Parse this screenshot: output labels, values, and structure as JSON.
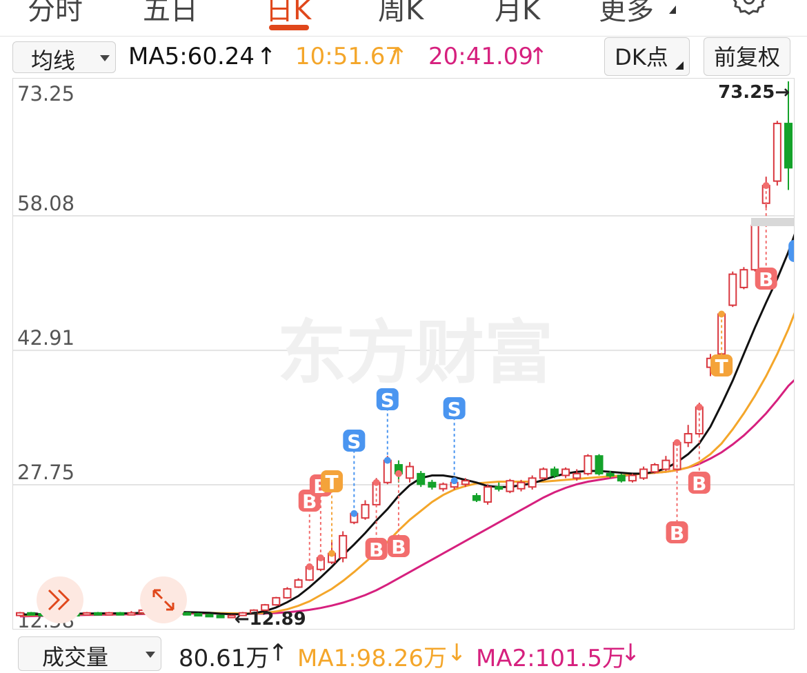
{
  "tabs": [
    {
      "label": "分时",
      "active": false
    },
    {
      "label": "五日",
      "active": false
    },
    {
      "label": "日K",
      "active": true
    },
    {
      "label": "周K",
      "active": false
    },
    {
      "label": "月K",
      "active": false
    },
    {
      "label": "更多",
      "active": false
    }
  ],
  "toolbar": {
    "indicator_select": "均线",
    "ma5": "MA5:60.24",
    "ma10": "10:51.67",
    "ma20": "20:41.09",
    "dk_button": "DK点",
    "adjust_button": "前复权"
  },
  "volume": {
    "select": "成交量",
    "value": "80.61万",
    "ma1": "MA1:98.26万",
    "ma2": "MA2:101.5万"
  },
  "colors": {
    "up": "#d9363e",
    "down": "#14a22a",
    "ma5": "#111111",
    "ma10": "#f4a62a",
    "ma20": "#d6207e",
    "accent": "#e0471b",
    "signal_b": "#f26d6d",
    "signal_s": "#4a95f0",
    "signal_t": "#f4a33a"
  },
  "chart_data": {
    "type": "candlestick",
    "y_axis_labels": [
      "73.25",
      "58.08",
      "42.91",
      "27.75",
      "12.58"
    ],
    "ylim": [
      12.58,
      73.25
    ],
    "high_annotation": "73.25→",
    "low_annotation": "←12.89",
    "watermark": "东方财富",
    "candles": [
      {
        "o": 13.0,
        "c": 13.3,
        "h": 13.4,
        "l": 12.9
      },
      {
        "o": 13.3,
        "c": 13.2,
        "h": 13.4,
        "l": 13.1
      },
      {
        "o": 13.2,
        "c": 13.1,
        "h": 13.3,
        "l": 13.0
      },
      {
        "o": 13.1,
        "c": 13.3,
        "h": 13.4,
        "l": 13.0
      },
      {
        "o": 13.3,
        "c": 13.2,
        "h": 13.4,
        "l": 13.1
      },
      {
        "o": 13.2,
        "c": 13.1,
        "h": 13.3,
        "l": 13.0
      },
      {
        "o": 13.1,
        "c": 13.3,
        "h": 13.4,
        "l": 13.0
      },
      {
        "o": 13.3,
        "c": 13.2,
        "h": 13.4,
        "l": 13.1
      },
      {
        "o": 13.2,
        "c": 13.3,
        "h": 13.4,
        "l": 13.1
      },
      {
        "o": 13.3,
        "c": 13.2,
        "h": 13.4,
        "l": 13.1
      },
      {
        "o": 13.2,
        "c": 13.3,
        "h": 13.5,
        "l": 13.1
      },
      {
        "o": 13.3,
        "c": 13.6,
        "h": 13.7,
        "l": 13.2
      },
      {
        "o": 13.6,
        "c": 13.5,
        "h": 13.7,
        "l": 13.4
      },
      {
        "o": 13.5,
        "c": 13.4,
        "h": 13.6,
        "l": 13.3
      },
      {
        "o": 13.4,
        "c": 13.3,
        "h": 13.5,
        "l": 13.2
      },
      {
        "o": 13.3,
        "c": 13.2,
        "h": 13.4,
        "l": 13.1
      },
      {
        "o": 13.2,
        "c": 13.1,
        "h": 13.3,
        "l": 13.0
      },
      {
        "o": 13.1,
        "c": 13.0,
        "h": 13.2,
        "l": 12.95
      },
      {
        "o": 13.0,
        "c": 12.95,
        "h": 13.1,
        "l": 12.89
      },
      {
        "o": 12.95,
        "c": 13.0,
        "h": 13.1,
        "l": 12.89
      },
      {
        "o": 13.0,
        "c": 13.3,
        "h": 13.4,
        "l": 12.95
      },
      {
        "o": 13.3,
        "c": 13.6,
        "h": 13.7,
        "l": 13.2
      },
      {
        "o": 13.6,
        "c": 14.2,
        "h": 14.3,
        "l": 13.5
      },
      {
        "o": 14.2,
        "c": 15.0,
        "h": 15.1,
        "l": 14.1
      },
      {
        "o": 15.0,
        "c": 16.0,
        "h": 16.2,
        "l": 14.9
      },
      {
        "o": 16.2,
        "c": 17.0,
        "h": 17.2,
        "l": 16.1
      },
      {
        "o": 17.0,
        "c": 18.5,
        "h": 18.6,
        "l": 16.9
      },
      {
        "o": 18.2,
        "c": 19.5,
        "h": 19.8,
        "l": 18.0
      },
      {
        "o": 19.0,
        "c": 20.0,
        "h": 21.5,
        "l": 18.8
      },
      {
        "o": 19.5,
        "c": 22.0,
        "h": 22.5,
        "l": 19.0
      },
      {
        "o": 23.5,
        "c": 24.5,
        "h": 24.8,
        "l": 23.3
      },
      {
        "o": 24.0,
        "c": 25.5,
        "h": 26.0,
        "l": 23.8
      },
      {
        "o": 25.5,
        "c": 28.0,
        "h": 28.5,
        "l": 25.3
      },
      {
        "o": 28.0,
        "c": 30.5,
        "h": 31.0,
        "l": 27.8
      },
      {
        "o": 30.0,
        "c": 29.0,
        "h": 30.5,
        "l": 28.0
      },
      {
        "o": 28.5,
        "c": 29.8,
        "h": 30.3,
        "l": 28.0
      },
      {
        "o": 29.0,
        "c": 27.8,
        "h": 29.3,
        "l": 27.5
      },
      {
        "o": 28.0,
        "c": 27.5,
        "h": 28.3,
        "l": 27.2
      },
      {
        "o": 27.3,
        "c": 27.8,
        "h": 28.0,
        "l": 27.0
      },
      {
        "o": 27.5,
        "c": 28.0,
        "h": 28.3,
        "l": 27.2
      },
      {
        "o": 27.8,
        "c": 28.2,
        "h": 28.5,
        "l": 27.5
      },
      {
        "o": 26.5,
        "c": 26.0,
        "h": 26.8,
        "l": 25.8
      },
      {
        "o": 25.8,
        "c": 27.5,
        "h": 27.8,
        "l": 25.5
      },
      {
        "o": 27.5,
        "c": 27.3,
        "h": 28.0,
        "l": 27.0
      },
      {
        "o": 27.0,
        "c": 28.2,
        "h": 28.4,
        "l": 26.8
      },
      {
        "o": 27.3,
        "c": 28.0,
        "h": 28.3,
        "l": 27.0
      },
      {
        "o": 27.5,
        "c": 28.5,
        "h": 28.8,
        "l": 27.2
      },
      {
        "o": 28.5,
        "c": 29.5,
        "h": 29.7,
        "l": 28.3
      },
      {
        "o": 29.5,
        "c": 28.8,
        "h": 29.8,
        "l": 28.5
      },
      {
        "o": 28.8,
        "c": 29.5,
        "h": 29.7,
        "l": 28.5
      },
      {
        "o": 28.5,
        "c": 29.0,
        "h": 29.5,
        "l": 28.2
      },
      {
        "o": 29.0,
        "c": 31.0,
        "h": 31.2,
        "l": 28.8
      },
      {
        "o": 31.0,
        "c": 29.0,
        "h": 31.2,
        "l": 28.8
      },
      {
        "o": 29.0,
        "c": 28.8,
        "h": 29.3,
        "l": 28.5
      },
      {
        "o": 28.8,
        "c": 28.2,
        "h": 29.0,
        "l": 28.0
      },
      {
        "o": 28.2,
        "c": 28.8,
        "h": 29.0,
        "l": 28.0
      },
      {
        "o": 28.5,
        "c": 29.5,
        "h": 29.8,
        "l": 28.3
      },
      {
        "o": 29.2,
        "c": 30.0,
        "h": 30.2,
        "l": 29.0
      },
      {
        "o": 29.5,
        "c": 30.5,
        "h": 31.0,
        "l": 29.3
      },
      {
        "o": 29.5,
        "c": 32.5,
        "h": 32.8,
        "l": 29.3
      },
      {
        "o": 32.5,
        "c": 33.5,
        "h": 34.5,
        "l": 32.0
      },
      {
        "o": 33.5,
        "c": 36.5,
        "h": 37.0,
        "l": 33.3
      },
      {
        "o": 41.0,
        "c": 42.0,
        "h": 42.5,
        "l": 40.0
      },
      {
        "o": 42.5,
        "c": 47.0,
        "h": 47.3,
        "l": 42.0
      },
      {
        "o": 48.0,
        "c": 51.5,
        "h": 51.8,
        "l": 47.8
      },
      {
        "o": 50.0,
        "c": 52.0,
        "h": 52.3,
        "l": 49.8
      },
      {
        "o": 52.0,
        "c": 57.0,
        "h": 57.5,
        "l": 51.8
      },
      {
        "o": 59.5,
        "c": 61.5,
        "h": 62.5,
        "l": 59.0
      },
      {
        "o": 62.0,
        "c": 68.5,
        "h": 68.8,
        "l": 61.5
      },
      {
        "o": 68.5,
        "c": 63.5,
        "h": 73.25,
        "l": 61.0
      }
    ],
    "ma5": [
      13.1,
      13.12,
      13.15,
      13.18,
      13.2,
      13.2,
      13.22,
      13.23,
      13.24,
      13.24,
      13.25,
      13.3,
      13.35,
      13.38,
      13.4,
      13.38,
      13.35,
      13.3,
      13.2,
      13.15,
      13.15,
      13.25,
      13.5,
      13.9,
      14.5,
      15.2,
      16.2,
      17.3,
      18.5,
      19.8,
      21.0,
      22.3,
      23.7,
      25.0,
      26.5,
      27.7,
      28.5,
      28.8,
      28.8,
      28.6,
      28.3,
      28.0,
      27.6,
      27.5,
      27.5,
      27.7,
      27.9,
      28.3,
      28.7,
      29.0,
      29.2,
      29.3,
      29.3,
      29.2,
      29.1,
      29.0,
      29.0,
      29.2,
      29.6,
      30.3,
      31.2,
      32.4,
      34.3,
      36.8,
      39.5,
      42.5,
      45.5,
      48.3,
      51.0,
      54.0,
      57.5,
      60.24
    ],
    "ma10": [
      13.0,
      13.05,
      13.08,
      13.1,
      13.12,
      13.15,
      13.17,
      13.19,
      13.2,
      13.22,
      13.23,
      13.25,
      13.27,
      13.3,
      13.32,
      13.33,
      13.32,
      13.3,
      13.27,
      13.25,
      13.23,
      13.22,
      13.3,
      13.45,
      13.7,
      14.1,
      14.6,
      15.3,
      16.0,
      16.9,
      17.9,
      19.0,
      20.1,
      21.3,
      22.6,
      23.8,
      24.8,
      25.8,
      26.6,
      27.2,
      27.6,
      27.9,
      28.0,
      28.1,
      28.1,
      28.1,
      28.1,
      28.1,
      28.2,
      28.3,
      28.4,
      28.5,
      28.6,
      28.7,
      28.8,
      28.9,
      29.0,
      29.1,
      29.2,
      29.4,
      29.7,
      30.3,
      31.2,
      32.4,
      34.0,
      35.8,
      37.8,
      40.0,
      42.5,
      45.3,
      48.5,
      51.67
    ],
    "ma20": [
      12.9,
      12.93,
      12.96,
      13.0,
      13.02,
      13.04,
      13.06,
      13.08,
      13.1,
      13.12,
      13.14,
      13.16,
      13.18,
      13.2,
      13.21,
      13.22,
      13.23,
      13.23,
      13.22,
      13.21,
      13.2,
      13.2,
      13.22,
      13.28,
      13.36,
      13.48,
      13.64,
      13.85,
      14.12,
      14.45,
      14.85,
      15.3,
      15.85,
      16.5,
      17.2,
      17.9,
      18.6,
      19.3,
      20.0,
      20.7,
      21.4,
      22.1,
      22.8,
      23.5,
      24.2,
      24.9,
      25.6,
      26.3,
      26.9,
      27.4,
      27.8,
      28.1,
      28.3,
      28.5,
      28.7,
      28.9,
      29.0,
      29.1,
      29.2,
      29.4,
      29.7,
      30.1,
      30.7,
      31.4,
      32.3,
      33.3,
      34.5,
      35.8,
      37.3,
      38.9,
      40.1,
      41.09
    ]
  }
}
